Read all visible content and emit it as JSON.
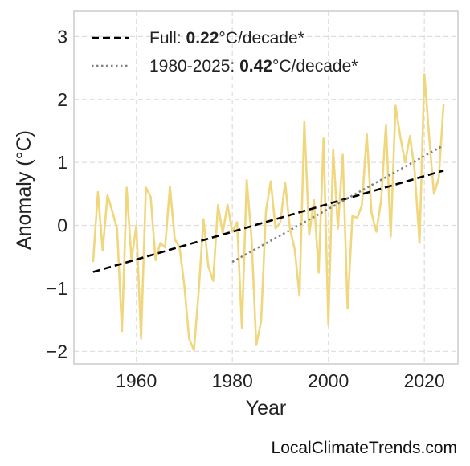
{
  "chart_data": {
    "type": "line",
    "xlabel": "Year",
    "ylabel": "Anomaly (°C)",
    "xlim": [
      1947,
      2027
    ],
    "ylim": [
      -2.2,
      3.4
    ],
    "xticks": [
      1960,
      1980,
      2000,
      2020
    ],
    "yticks": [
      -2,
      -1,
      0,
      1,
      2,
      3
    ],
    "grid": true,
    "legend_position": "top-left",
    "series": [
      {
        "color": "#f0d77e",
        "x": [
          1951,
          1952,
          1953,
          1954,
          1955,
          1956,
          1957,
          1958,
          1959,
          1960,
          1961,
          1962,
          1963,
          1964,
          1965,
          1966,
          1967,
          1968,
          1969,
          1970,
          1971,
          1972,
          1973,
          1974,
          1975,
          1976,
          1977,
          1978,
          1979,
          1980,
          1981,
          1982,
          1983,
          1984,
          1985,
          1986,
          1987,
          1988,
          1989,
          1990,
          1991,
          1992,
          1993,
          1994,
          1995,
          1996,
          1997,
          1998,
          1999,
          2000,
          2001,
          2002,
          2003,
          2004,
          2005,
          2006,
          2007,
          2008,
          2009,
          2010,
          2011,
          2012,
          2013,
          2014,
          2015,
          2016,
          2017,
          2018,
          2019,
          2020,
          2021,
          2022,
          2023,
          2024
        ],
        "y": [
          -0.58,
          0.53,
          -0.4,
          0.48,
          0.22,
          -0.05,
          -1.68,
          0.6,
          -0.55,
          0.0,
          -1.8,
          0.6,
          0.45,
          -0.55,
          -0.28,
          -0.35,
          0.62,
          -0.22,
          -0.35,
          -0.95,
          -1.8,
          -1.98,
          -1.05,
          0.1,
          -0.65,
          -0.88,
          0.32,
          -0.12,
          0.33,
          -0.1,
          0.05,
          -1.63,
          0.72,
          -0.2,
          -1.9,
          -1.52,
          0.22,
          0.7,
          -0.05,
          0.05,
          0.68,
          -0.05,
          -0.38,
          -1.12,
          1.65,
          -0.15,
          0.4,
          -0.75,
          1.38,
          -1.58,
          1.2,
          -0.05,
          1.12,
          -1.32,
          0.15,
          0.12,
          0.32,
          1.45,
          0.2,
          -0.1,
          0.4,
          1.6,
          -0.18,
          1.9,
          1.4,
          1.0,
          1.42,
          0.85,
          -0.28,
          2.4,
          1.4,
          0.5,
          0.75,
          1.92
        ]
      }
    ],
    "trendlines": [
      {
        "label_prefix": "Full: ",
        "label_value": "0.22",
        "label_suffix": "°C/decade*",
        "style": "dashed",
        "color": "#000000",
        "x": [
          1951,
          2024
        ],
        "y": [
          -0.74,
          0.87
        ]
      },
      {
        "label_prefix": "1980-2025: ",
        "label_value": "0.42",
        "label_suffix": "°C/decade*",
        "style": "dotted",
        "color": "#808080",
        "x": [
          1980,
          2024
        ],
        "y": [
          -0.58,
          1.27
        ]
      }
    ]
  },
  "footer": {
    "credit": "LocalClimateTrends.com"
  }
}
